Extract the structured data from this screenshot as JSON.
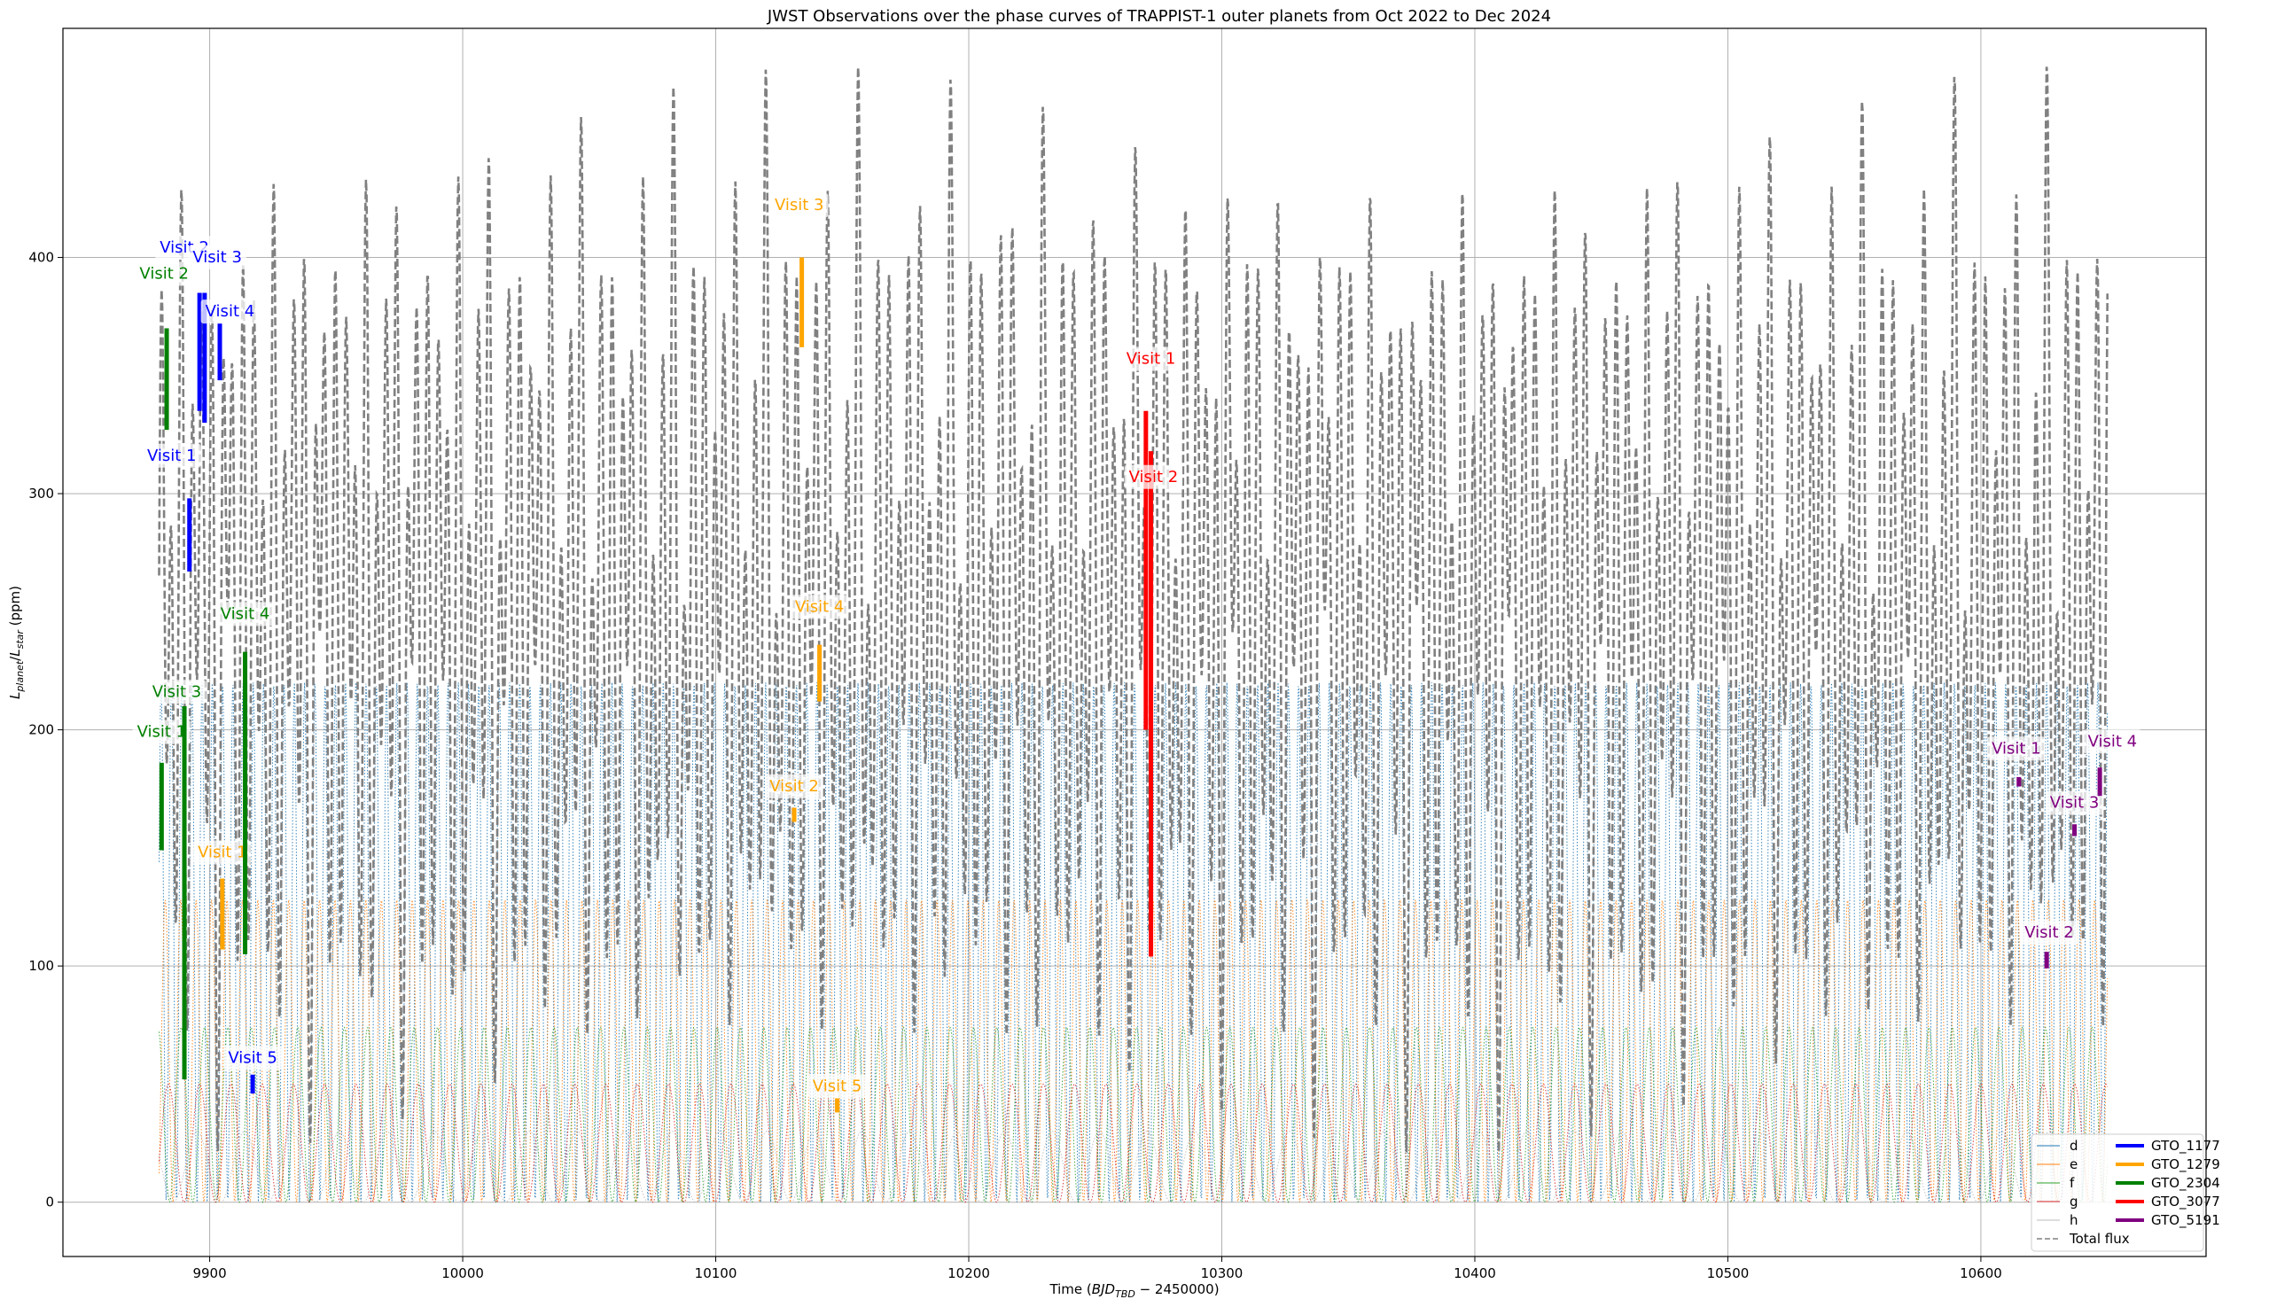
{
  "chart_data": {
    "type": "line",
    "title": "JWST Observations over the phase curves of TRAPPIST-1 outer planets from Oct 2022 to Dec 2024",
    "xlabel": "Time (BJD_TBD − 2450000)",
    "xlabel_parts": {
      "prefix": "Time (",
      "italic": "BJD",
      "sub": "TBD",
      "suffix": " − 2450000)"
    },
    "ylabel": "L_planet/L_star (ppm)",
    "ylabel_parts": {
      "L1": "L",
      "sub1": "planet",
      "slash": "/",
      "L2": "L",
      "sub2": "star",
      "suffix": " (ppm)"
    },
    "xlim": [
      9842,
      10689
    ],
    "ylim": [
      -23,
      497
    ],
    "x_start": 9880,
    "x_end": 10650,
    "x_ticks": [
      9900,
      10000,
      10100,
      10200,
      10300,
      10400,
      10500,
      10600
    ],
    "y_ticks": [
      0,
      100,
      200,
      300,
      400
    ],
    "grid": true,
    "legend_position": "lower right",
    "series": [
      {
        "name": "d",
        "color": "#1f77b4",
        "style": "dotted",
        "period": 4.05,
        "amplitude": 220,
        "phase": 0.3
      },
      {
        "name": "e",
        "color": "#ff7f0e",
        "style": "dotted",
        "period": 6.1,
        "amplitude": 128,
        "phase": 0.1
      },
      {
        "name": "f",
        "color": "#2ca02c",
        "style": "dotted",
        "period": 9.21,
        "amplitude": 74,
        "phase": 0.55
      },
      {
        "name": "g",
        "color": "#d62728",
        "style": "dotted",
        "period": 12.35,
        "amplitude": 50,
        "phase": 0.2
      },
      {
        "name": "h",
        "color": "#bbbbbb",
        "style": "dotted",
        "period": 18.77,
        "amplitude": 30,
        "phase": 0.7
      },
      {
        "name": "Total flux",
        "color": "#808080",
        "style": "dashed"
      }
    ],
    "programs": [
      {
        "name": "GTO_1177",
        "color": "#0000ff"
      },
      {
        "name": "GTO_1279",
        "color": "#ffa500"
      },
      {
        "name": "GTO_2304",
        "color": "#008000"
      },
      {
        "name": "GTO_3077",
        "color": "#ff0000"
      },
      {
        "name": "GTO_5191",
        "color": "#800080"
      }
    ],
    "observations": [
      {
        "program": "GTO_1177",
        "label": "Visit 1",
        "x": 9892,
        "y0": 267,
        "y1": 298,
        "label_x": 9885,
        "label_y": 314
      },
      {
        "program": "GTO_1177",
        "label": "Visit 2",
        "x": 9896,
        "y0": 335,
        "y1": 385,
        "label_x": 9890,
        "label_y": 402
      },
      {
        "program": "GTO_1177",
        "label": "Visit 3",
        "x": 9898,
        "y0": 330,
        "y1": 385,
        "label_x": 9903,
        "label_y": 398
      },
      {
        "program": "GTO_1177",
        "label": "Visit 4",
        "x": 9904,
        "y0": 348,
        "y1": 372,
        "label_x": 9908,
        "label_y": 375
      },
      {
        "program": "GTO_1177",
        "label": "Visit 5",
        "x": 9917,
        "y0": 46,
        "y1": 54,
        "label_x": 9917,
        "label_y": 59
      },
      {
        "program": "GTO_1279",
        "label": "Visit 1",
        "x": 9905,
        "y0": 107,
        "y1": 137,
        "label_x": 9905,
        "label_y": 146
      },
      {
        "program": "GTO_1279",
        "label": "Visit 2",
        "x": 10131,
        "y0": 161,
        "y1": 167,
        "label_x": 10131,
        "label_y": 174
      },
      {
        "program": "GTO_1279",
        "label": "Visit 3",
        "x": 10134,
        "y0": 362,
        "y1": 400,
        "label_x": 10133,
        "label_y": 420
      },
      {
        "program": "GTO_1279",
        "label": "Visit 4",
        "x": 10141,
        "y0": 212,
        "y1": 236,
        "label_x": 10141,
        "label_y": 250
      },
      {
        "program": "GTO_1279",
        "label": "Visit 5",
        "x": 10148,
        "y0": 38,
        "y1": 44,
        "label_x": 10148,
        "label_y": 47
      },
      {
        "program": "GTO_2304",
        "label": "Visit 1",
        "x": 9881,
        "y0": 149,
        "y1": 186,
        "label_x": 9881,
        "label_y": 197
      },
      {
        "program": "GTO_2304",
        "label": "Visit 2",
        "x": 9883,
        "y0": 327,
        "y1": 370,
        "label_x": 9882,
        "label_y": 391
      },
      {
        "program": "GTO_2304",
        "label": "Visit 3",
        "x": 9890,
        "y0": 52,
        "y1": 210,
        "label_x": 9887,
        "label_y": 214
      },
      {
        "program": "GTO_2304",
        "label": "Visit 4",
        "x": 9914,
        "y0": 105,
        "y1": 233,
        "label_x": 9914,
        "label_y": 247
      },
      {
        "program": "GTO_3077",
        "label": "Visit 1",
        "x": 10270,
        "y0": 200,
        "y1": 335,
        "label_x": 10272,
        "label_y": 355
      },
      {
        "program": "GTO_3077",
        "label": "Visit 2",
        "x": 10272,
        "y0": 104,
        "y1": 318,
        "label_x": 10273,
        "label_y": 305
      },
      {
        "program": "GTO_5191",
        "label": "Visit 1",
        "x": 10615,
        "y0": 176,
        "y1": 180,
        "label_x": 10614,
        "label_y": 190
      },
      {
        "program": "GTO_5191",
        "label": "Visit 2",
        "x": 10626,
        "y0": 99,
        "y1": 106,
        "label_x": 10627,
        "label_y": 112
      },
      {
        "program": "GTO_5191",
        "label": "Visit 3",
        "x": 10637,
        "y0": 155,
        "y1": 160,
        "label_x": 10637,
        "label_y": 167
      },
      {
        "program": "GTO_5191",
        "label": "Visit 4",
        "x": 10647,
        "y0": 172,
        "y1": 184,
        "label_x": 10652,
        "label_y": 193
      }
    ]
  }
}
